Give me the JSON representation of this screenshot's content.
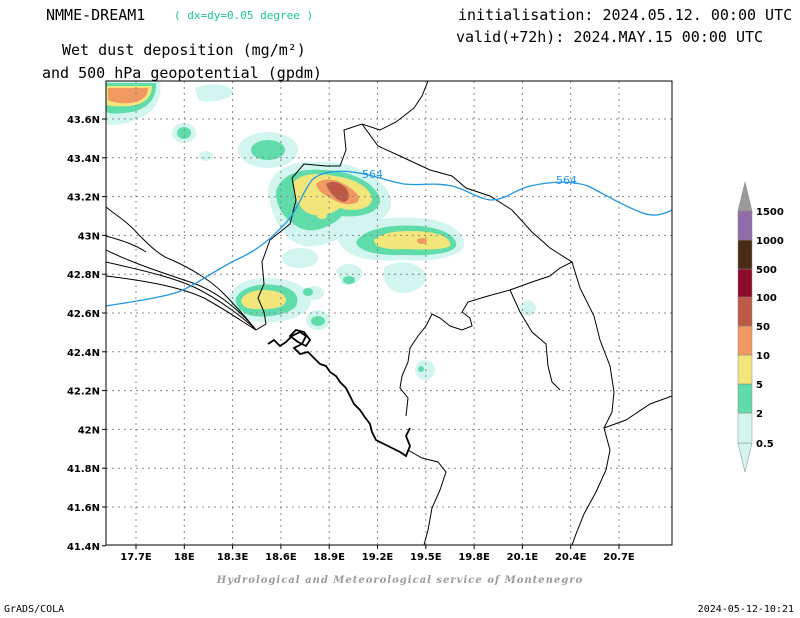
{
  "header": {
    "model": "NMME-DREAM1",
    "resolution": "( dx=dy=0.05 degree )",
    "variable_line1": "Wet dust deposition (mg/m²)",
    "variable_line2": "and 500 hPa geopotential (gpdm)",
    "initialisation": "initialisation: 2024.05.12. 00:00 UTC",
    "valid": "valid(+72h): 2024.MAY.15 00:00 UTC"
  },
  "map": {
    "lat_labels": [
      "43.6N",
      "43.4N",
      "43.2N",
      "43N",
      "42.8N",
      "42.6N",
      "42.4N",
      "42.2N",
      "42N",
      "41.8N",
      "41.6N",
      "41.4N"
    ],
    "lon_labels": [
      "17.7E",
      "18E",
      "18.3E",
      "18.6E",
      "18.9E",
      "19.2E",
      "19.5E",
      "19.8E",
      "20.1E",
      "20.4E",
      "20.7E"
    ],
    "contour_labels": [
      "564",
      "564"
    ],
    "contour_color": "#1f97e6"
  },
  "legend": {
    "levels": [
      "0.5",
      "2",
      "5",
      "10",
      "50",
      "100",
      "500",
      "1000",
      "1500"
    ],
    "colors": [
      "#d2f5ef",
      "#60dcaa",
      "#f2e57a",
      "#f09a62",
      "#bd5a46",
      "#8c0a2a",
      "#4a2b16",
      "#916ca8",
      "#9a9a9a"
    ]
  },
  "footer": {
    "left": "GrADS/COLA",
    "right": "2024-05-12-10:21",
    "credit": "Hydrological and Meteorological service of Montenegro"
  }
}
